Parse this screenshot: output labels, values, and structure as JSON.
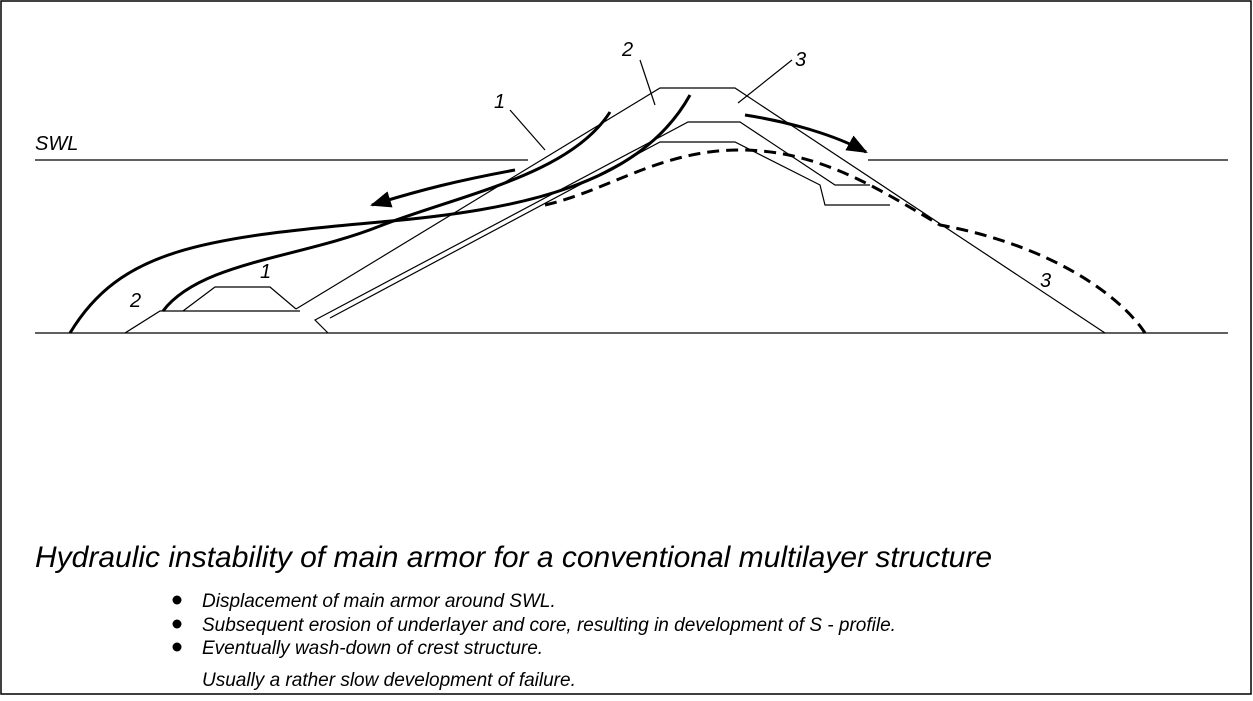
{
  "diagram": {
    "swl": "SWL",
    "markers": [
      "2",
      "3",
      "1",
      "1",
      "2",
      "3"
    ]
  },
  "caption": {
    "title": "Hydraulic instability of main armor for a conventional multilayer structure",
    "bullets": [
      "Displacement of main armor around SWL.",
      "Subsequent erosion of underlayer and core, resulting in development of S - profile.",
      "Eventually wash-down of crest structure."
    ],
    "note": "Usually a rather slow development of failure."
  }
}
